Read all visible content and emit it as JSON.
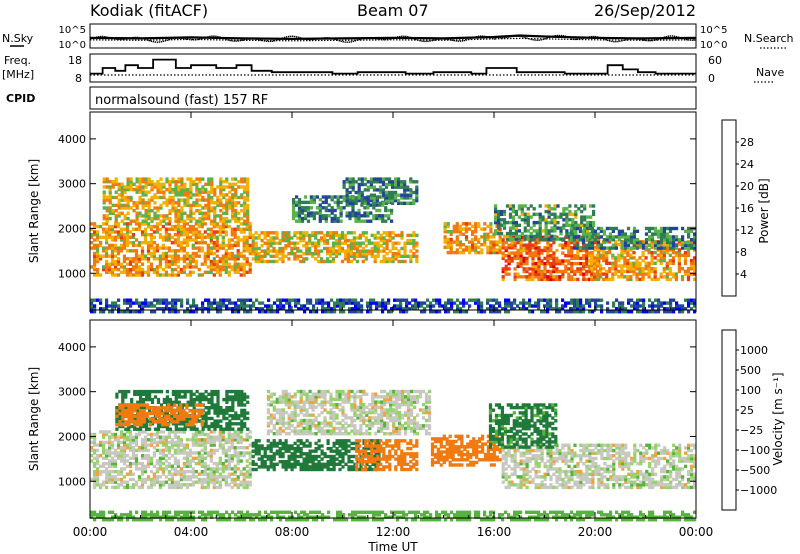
{
  "header": {
    "station": "Kodiak (fitACF)",
    "beam": "Beam 07",
    "date": "26/Sep/2012",
    "mode": "normalsound (fast) 157 RF"
  },
  "left_labels": {
    "nsky": "N.Sky",
    "freq": "Freq.",
    "freq_unit": "[MHz]",
    "cpid": "CPID"
  },
  "right_labels": {
    "nsearch": "N.Search",
    "nave": "Nave"
  },
  "colors": {
    "power_scale": [
      "#0000ff",
      "#22449a",
      "#2f7d55",
      "#5ab24a",
      "#f4b000",
      "#f07a10",
      "#e83a14",
      "#e00000"
    ],
    "velocity_scale": [
      "#1e3f9e",
      "#1f7a3a",
      "#56b43c",
      "#96d36a",
      "#c8c8c0",
      "#f2a23a",
      "#f07a10",
      "#e0000a"
    ],
    "ground_scatter": "#c8c8c0"
  },
  "chart_data": [
    {
      "type": "line",
      "panel": "noise",
      "left_axis": {
        "label": "N.Sky",
        "ticks": [
          "10^5",
          "10^0"
        ]
      },
      "right_axis": {
        "label": "N.Search",
        "ticks": [
          "10^5",
          "10^0"
        ]
      },
      "x": [
        0,
        2,
        4,
        6,
        8,
        10,
        12,
        14,
        16,
        17,
        18,
        20,
        22,
        24
      ],
      "series": [
        {
          "name": "N.Sky",
          "values": [
            2.1,
            2.0,
            2.2,
            2.0,
            1.9,
            2.0,
            2.1,
            2.0,
            2.3,
            2.6,
            2.4,
            2.1,
            2.0,
            2.1
          ]
        },
        {
          "name": "N.Search",
          "values": [
            1.7,
            1.6,
            1.8,
            1.6,
            1.5,
            1.6,
            1.7,
            1.6,
            1.9,
            2.0,
            1.9,
            1.7,
            1.6,
            1.7
          ]
        }
      ],
      "ylim": [
        0,
        5
      ]
    },
    {
      "type": "line",
      "panel": "frequency",
      "left_axis": {
        "label": "Freq. [MHz]",
        "ticks": [
          "18",
          "8"
        ],
        "ylim": [
          8,
          18
        ]
      },
      "right_axis": {
        "label": "Nave",
        "ticks": [
          "60",
          "0"
        ],
        "ylim": [
          0,
          60
        ]
      },
      "x": [
        0,
        0.5,
        1.0,
        1.4,
        1.9,
        2.5,
        3.4,
        4.0,
        5.0,
        5.8,
        6.4,
        7.2,
        9.6,
        10.6,
        12.5,
        13.6,
        15.1,
        15.7,
        16.9,
        18.8,
        20.5,
        21.1,
        21.7,
        22.4,
        24
      ],
      "series": [
        {
          "name": "Freq",
          "values": [
            11,
            13,
            12,
            14,
            13,
            16,
            13,
            14,
            13,
            14,
            12,
            11.5,
            11,
            11.5,
            11,
            11.5,
            11,
            13,
            11.5,
            11,
            14,
            12.5,
            11.5,
            11,
            11
          ]
        },
        {
          "name": "Nave",
          "values": [
            15,
            15,
            15,
            15,
            15,
            15,
            15,
            15,
            15,
            15,
            15,
            15,
            15,
            15,
            15,
            15,
            15,
            15,
            15,
            15,
            15,
            15,
            15,
            15,
            15
          ]
        }
      ]
    },
    {
      "type": "heatmap",
      "panel": "power",
      "xlabel": "Time UT",
      "ylabel": "Slant Range [km]",
      "x_ticks": [
        "00:00",
        "04:00",
        "08:00",
        "12:00",
        "16:00",
        "20:00",
        "00:00"
      ],
      "y_ticks": [
        "1000",
        "2000",
        "3000",
        "4000"
      ],
      "ylim": [
        180,
        4600
      ],
      "xlim": [
        0,
        24
      ],
      "colorbar": {
        "label": "Power [dB]",
        "ticks": [
          "4",
          "8",
          "12",
          "16",
          "20",
          "24",
          "28"
        ],
        "range": [
          0,
          32
        ]
      },
      "bands": [
        {
          "t0": 0,
          "t1": 6.4,
          "r0": 1000,
          "r1": 2200,
          "value": 20
        },
        {
          "t0": 0.5,
          "t1": 6.3,
          "r0": 2200,
          "r1": 3200,
          "value": 18
        },
        {
          "t0": 6.4,
          "t1": 13.0,
          "r0": 1300,
          "r1": 2000,
          "value": 18
        },
        {
          "t0": 8.0,
          "t1": 12.0,
          "r0": 2200,
          "r1": 2800,
          "value": 10
        },
        {
          "t0": 10.0,
          "t1": 13.0,
          "r0": 2600,
          "r1": 3200,
          "value": 10
        },
        {
          "t0": 14.0,
          "t1": 16.3,
          "r0": 1500,
          "r1": 2200,
          "value": 20
        },
        {
          "t0": 16.3,
          "t1": 20.2,
          "r0": 900,
          "r1": 1900,
          "value": 24
        },
        {
          "t0": 16.0,
          "t1": 20.0,
          "r0": 1800,
          "r1": 2600,
          "value": 12
        },
        {
          "t0": 19.8,
          "t1": 24.0,
          "r0": 900,
          "r1": 1800,
          "value": 20
        },
        {
          "t0": 19.0,
          "t1": 24.0,
          "r0": 1600,
          "r1": 2100,
          "value": 10
        },
        {
          "t0": 0,
          "t1": 24.0,
          "r0": 180,
          "r1": 500,
          "value": 6
        }
      ]
    },
    {
      "type": "heatmap",
      "panel": "velocity",
      "xlabel": "Time UT",
      "ylabel": "Slant Range [km]",
      "x_ticks": [
        "00:00",
        "04:00",
        "08:00",
        "12:00",
        "16:00",
        "20:00",
        "00:00"
      ],
      "y_ticks": [
        "1000",
        "2000",
        "3000",
        "4000"
      ],
      "ylim": [
        180,
        4600
      ],
      "xlim": [
        0,
        24
      ],
      "colorbar": {
        "label": "Velocity [m s⁻¹]",
        "ticks": [
          "1000",
          "500",
          "100",
          "25",
          "−25",
          "−100",
          "−500",
          "−1000"
        ],
        "range": [
          -1000,
          1000
        ]
      },
      "bands": [
        {
          "t0": 0.0,
          "t1": 6.4,
          "r0": 900,
          "r1": 2200,
          "value": 0
        },
        {
          "t0": 1.0,
          "t1": 6.3,
          "r0": 2200,
          "r1": 3100,
          "value": 150
        },
        {
          "t0": 1.0,
          "t1": 4.5,
          "r0": 2300,
          "r1": 2800,
          "value": -150
        },
        {
          "t0": 6.4,
          "t1": 11.5,
          "r0": 1300,
          "r1": 2000,
          "value": 150
        },
        {
          "t0": 10.5,
          "t1": 13.0,
          "r0": 1300,
          "r1": 2000,
          "value": -150
        },
        {
          "t0": 7.0,
          "t1": 13.5,
          "r0": 2100,
          "r1": 3100,
          "value": 0
        },
        {
          "t0": 13.5,
          "t1": 16.3,
          "r0": 1400,
          "r1": 2100,
          "value": -200
        },
        {
          "t0": 16.3,
          "t1": 24.0,
          "r0": 900,
          "r1": 1900,
          "value": 0
        },
        {
          "t0": 15.8,
          "t1": 18.5,
          "r0": 1800,
          "r1": 2800,
          "value": 120
        },
        {
          "t0": 0.0,
          "t1": 24.0,
          "r0": 180,
          "r1": 400,
          "value": 60
        }
      ]
    }
  ]
}
